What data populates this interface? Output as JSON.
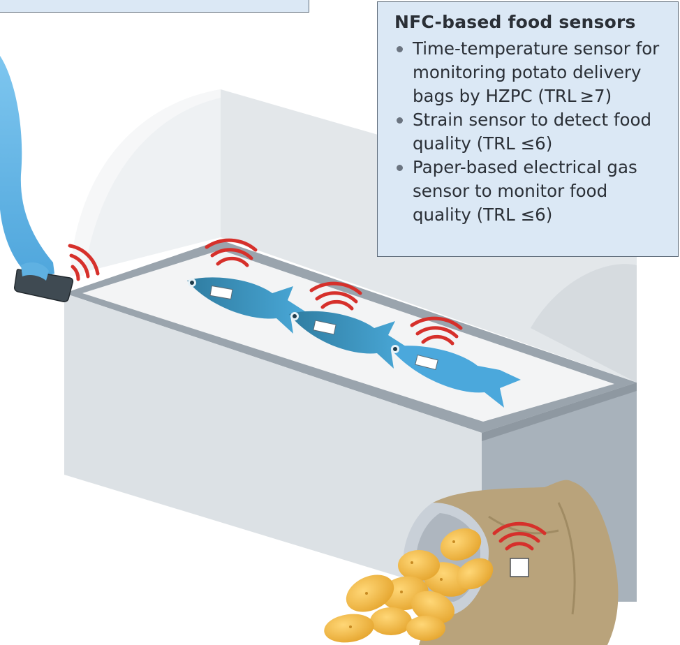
{
  "info_box": {
    "title": "NFC-based food sensors",
    "items": [
      "Time-temperature sensor for monitoring potato delivery bags by HZPC (TRL ≥7)",
      "Strain sensor to detect food quality (TRL ≤6)",
      "Paper-based electrical gas sensor to monitor food quality  (TRL ≤6)"
    ]
  },
  "colors": {
    "box_fill": "#dbe8f5",
    "box_border": "#5f6c7a",
    "fish": "#4aa3d6",
    "signal": "#d6302b",
    "sack": "#b8a27a",
    "potato": "#f0b842",
    "case": "#dbe1e6",
    "hand": "#66b6e6",
    "phone": "#3f4a52"
  },
  "icons": [
    "nfc-signal-icon",
    "phone-icon",
    "fish-icon",
    "potato-icon",
    "sensor-tag-icon"
  ]
}
